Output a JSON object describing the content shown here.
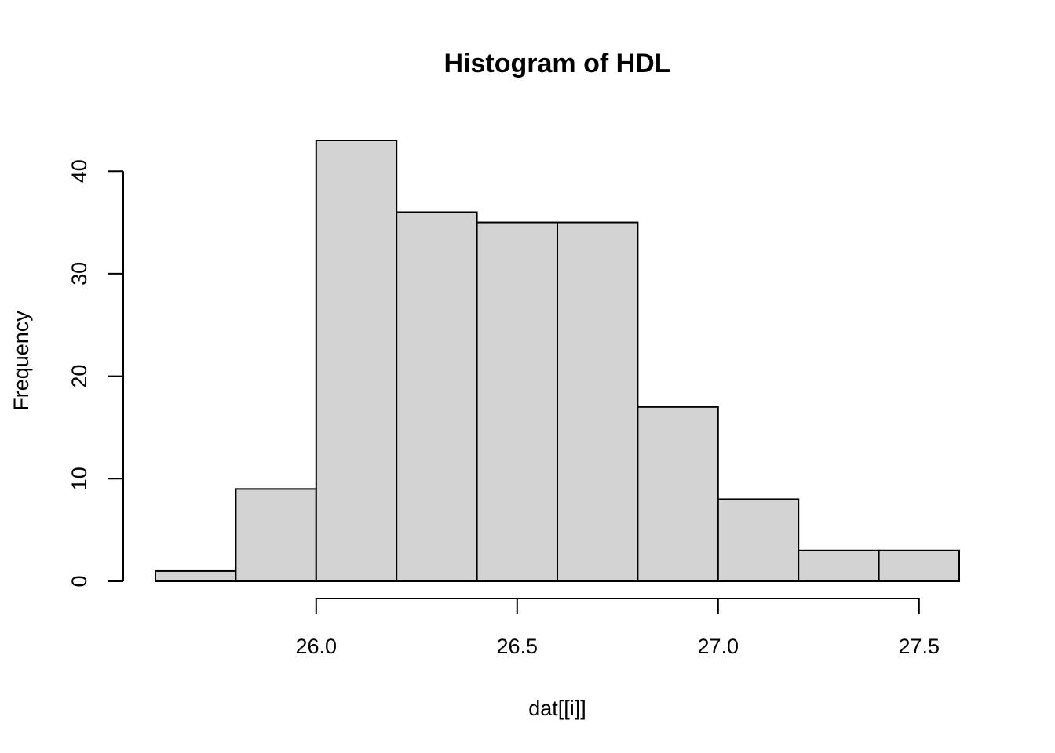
{
  "chart_data": {
    "type": "bar",
    "title": "Histogram of HDL",
    "xlabel": "dat[[i]]",
    "ylabel": "Frequency",
    "bins": [
      {
        "start": 25.6,
        "end": 25.8,
        "count": 1
      },
      {
        "start": 25.8,
        "end": 26.0,
        "count": 9
      },
      {
        "start": 26.0,
        "end": 26.2,
        "count": 43
      },
      {
        "start": 26.2,
        "end": 26.4,
        "count": 36
      },
      {
        "start": 26.4,
        "end": 26.6,
        "count": 35
      },
      {
        "start": 26.6,
        "end": 26.8,
        "count": 35
      },
      {
        "start": 26.8,
        "end": 27.0,
        "count": 17
      },
      {
        "start": 27.0,
        "end": 27.2,
        "count": 8
      },
      {
        "start": 27.2,
        "end": 27.4,
        "count": 3
      },
      {
        "start": 27.4,
        "end": 27.6,
        "count": 3
      }
    ],
    "xlim": [
      25.6,
      27.6
    ],
    "ylim": [
      0,
      43
    ],
    "x_ticks": [
      "26.0",
      "26.5",
      "27.0",
      "27.5"
    ],
    "y_ticks": [
      "0",
      "10",
      "20",
      "30",
      "40"
    ],
    "bar_color": "#d3d3d3",
    "edge_color": "#000000",
    "grid": false,
    "legend": "none"
  }
}
